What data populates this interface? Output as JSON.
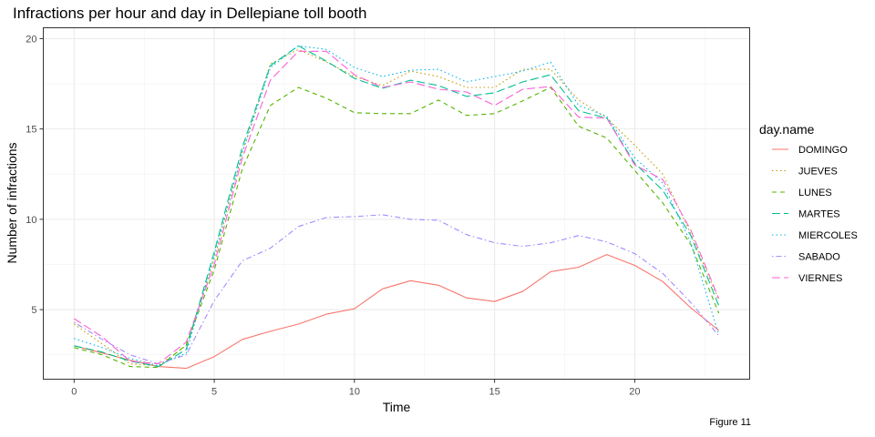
{
  "chart_data": {
    "type": "line",
    "title": "Infractions per hour and day in Dellepiane toll booth",
    "caption": "Figure 11",
    "xlabel": "Time",
    "ylabel": "Number of infractions",
    "xlim": [
      -1.1,
      24.1
    ],
    "ylim": [
      1.15,
      20.6
    ],
    "x_ticks": [
      0,
      5,
      10,
      15,
      20
    ],
    "y_ticks": [
      5,
      10,
      15,
      20
    ],
    "grid": true,
    "legend": {
      "title": "day.name",
      "position": "right"
    },
    "x": [
      0,
      1,
      2,
      3,
      4,
      5,
      6,
      7,
      8,
      9,
      10,
      11,
      12,
      13,
      14,
      15,
      16,
      17,
      18,
      19,
      20,
      21,
      22,
      23
    ],
    "series": [
      {
        "name": "DOMINGO",
        "color": "#F8766D",
        "dash": "solid",
        "values": [
          3.0,
          2.6,
          2.2,
          1.85,
          1.75,
          2.4,
          3.35,
          3.8,
          4.2,
          4.75,
          5.05,
          6.15,
          6.6,
          6.35,
          5.65,
          5.45,
          6.0,
          7.1,
          7.35,
          8.05,
          7.45,
          6.55,
          5.1,
          3.85
        ]
      },
      {
        "name": "JUEVES",
        "color": "#C49A00",
        "dash": "dotted",
        "values": [
          4.2,
          3.1,
          2.0,
          1.9,
          3.0,
          7.8,
          13.7,
          18.6,
          19.4,
          18.7,
          17.9,
          17.4,
          18.2,
          17.9,
          17.3,
          17.3,
          18.3,
          18.3,
          16.6,
          15.6,
          14.1,
          12.5,
          9.2,
          5.5
        ]
      },
      {
        "name": "LUNES",
        "color": "#53B400",
        "dash": "dashed",
        "values": [
          2.9,
          2.5,
          1.85,
          1.8,
          3.05,
          7.2,
          12.8,
          16.3,
          17.3,
          16.7,
          15.9,
          15.85,
          15.85,
          16.6,
          15.75,
          15.85,
          16.55,
          17.3,
          15.15,
          14.5,
          12.7,
          10.9,
          8.6,
          4.8
        ]
      },
      {
        "name": "MARTES",
        "color": "#00C094",
        "dash": "longdash",
        "values": [
          3.0,
          2.65,
          2.15,
          1.85,
          2.8,
          8.2,
          14.0,
          18.5,
          19.6,
          18.75,
          17.8,
          17.25,
          17.7,
          17.4,
          16.8,
          17.0,
          17.6,
          18.0,
          16.0,
          15.6,
          13.1,
          11.6,
          9.1,
          5.2
        ]
      },
      {
        "name": "MIERCOLES",
        "color": "#00B6EB",
        "dash": "dotted",
        "values": [
          3.4,
          2.9,
          2.3,
          1.9,
          2.6,
          8.0,
          13.7,
          18.4,
          19.6,
          19.4,
          18.4,
          17.9,
          18.25,
          18.3,
          17.6,
          17.9,
          18.2,
          18.7,
          16.3,
          15.7,
          13.4,
          12.0,
          8.7,
          3.6
        ]
      },
      {
        "name": "SABADO",
        "color": "#A58AFF",
        "dash": "dotdash",
        "values": [
          4.3,
          3.35,
          2.5,
          2.0,
          2.5,
          5.5,
          7.7,
          8.4,
          9.6,
          10.1,
          10.15,
          10.25,
          10.0,
          9.95,
          9.15,
          8.7,
          8.5,
          8.7,
          9.1,
          8.75,
          8.1,
          7.0,
          5.4,
          3.55
        ]
      },
      {
        "name": "VIERNES",
        "color": "#FB61D7",
        "dash": "longdash",
        "values": [
          4.5,
          3.5,
          2.15,
          2.0,
          3.2,
          7.5,
          13.4,
          17.7,
          19.3,
          19.3,
          18.0,
          17.3,
          17.6,
          17.2,
          17.05,
          16.3,
          17.2,
          17.35,
          15.65,
          15.6,
          13.0,
          12.2,
          9.4,
          5.6
        ]
      }
    ]
  }
}
